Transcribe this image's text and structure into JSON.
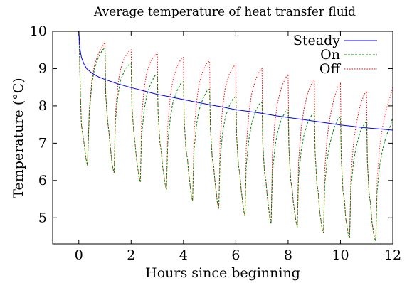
{
  "chart_data": {
    "type": "line",
    "title": "Average temperature of heat transfer fluid",
    "xlabel": "Hours since beginning",
    "ylabel": "Temperature (°C)",
    "xlim": [
      -1,
      12
    ],
    "ylim": [
      4.3,
      10
    ],
    "xticks": [
      0,
      2,
      4,
      6,
      8,
      10,
      12
    ],
    "yticks": [
      5,
      6,
      7,
      8,
      9,
      10
    ],
    "legend_position": "top-right",
    "grid": false,
    "series": [
      {
        "name": "Steady",
        "color": "#0000ff",
        "dash": "solid",
        "x": [
          0.0,
          0.02,
          0.05,
          0.1,
          0.2,
          0.3,
          0.5,
          0.75,
          1.0,
          1.5,
          2.0,
          2.5,
          3.0,
          3.5,
          4.0,
          4.5,
          5.0,
          5.5,
          6.0,
          6.5,
          7.0,
          7.5,
          8.0,
          8.5,
          9.0,
          9.5,
          10.0,
          10.5,
          11.0,
          11.5,
          12.0
        ],
        "y": [
          10.0,
          9.8,
          9.5,
          9.3,
          9.12,
          9.0,
          8.88,
          8.78,
          8.71,
          8.59,
          8.49,
          8.4,
          8.31,
          8.24,
          8.17,
          8.1,
          8.03,
          7.97,
          7.9,
          7.85,
          7.8,
          7.74,
          7.69,
          7.64,
          7.59,
          7.54,
          7.49,
          7.45,
          7.41,
          7.38,
          7.35
        ]
      },
      {
        "name": "On",
        "color": "#008000",
        "dash": "3,2",
        "x": [
          0.0,
          0.02,
          0.06,
          0.1,
          0.14,
          0.2,
          0.27,
          0.33,
          0.4,
          0.5,
          0.6,
          0.75,
          0.9,
          1.0,
          1.03,
          1.1,
          1.15,
          1.22,
          1.28,
          1.35,
          1.4,
          1.5,
          1.6,
          1.75,
          1.9,
          2.0,
          2.03,
          2.1,
          2.15,
          2.2,
          2.3,
          2.35,
          2.4,
          2.5,
          2.6,
          2.75,
          2.9,
          3.0,
          3.03,
          3.1,
          3.15,
          3.2,
          3.3,
          3.35,
          3.4,
          3.5,
          3.6,
          3.75,
          3.9,
          4.0,
          4.03,
          4.1,
          4.15,
          4.2,
          4.3,
          4.35,
          4.4,
          4.5,
          4.6,
          4.75,
          4.9,
          5.0,
          5.03,
          5.1,
          5.15,
          5.2,
          5.3,
          5.35,
          5.4,
          5.5,
          5.6,
          5.75,
          5.9,
          6.0,
          6.03,
          6.1,
          6.15,
          6.2,
          6.3,
          6.35,
          6.4,
          6.5,
          6.6,
          6.75,
          6.9,
          7.0,
          7.03,
          7.1,
          7.15,
          7.2,
          7.3,
          7.35,
          7.4,
          7.5,
          7.6,
          7.75,
          7.9,
          8.0,
          8.03,
          8.1,
          8.15,
          8.2,
          8.3,
          8.35,
          8.4,
          8.5,
          8.6,
          8.75,
          8.9,
          9.0,
          9.03,
          9.1,
          9.15,
          9.2,
          9.3,
          9.35,
          9.4,
          9.5,
          9.6,
          9.75,
          9.9,
          10.0,
          10.03,
          10.1,
          10.15,
          10.2,
          10.3,
          10.35,
          10.4,
          10.5,
          10.6,
          10.75,
          10.9,
          11.0,
          11.03,
          11.1,
          11.15,
          11.2,
          11.3,
          11.35,
          11.4,
          11.5,
          11.6,
          11.75,
          11.9,
          12.0
        ],
        "y": [
          10.0,
          9.6,
          8.3,
          7.5,
          7.3,
          7.0,
          6.6,
          6.4,
          7.8,
          8.6,
          9.0,
          9.3,
          9.5,
          9.55,
          8.3,
          7.6,
          7.3,
          6.8,
          6.4,
          6.2,
          7.6,
          8.3,
          8.7,
          8.95,
          9.1,
          9.15,
          8.0,
          7.3,
          7.0,
          6.6,
          6.1,
          5.95,
          7.2,
          7.9,
          8.3,
          8.6,
          8.8,
          8.85,
          7.8,
          7.0,
          6.8,
          6.4,
          5.9,
          5.75,
          7.0,
          7.7,
          8.1,
          8.4,
          8.6,
          8.65,
          7.6,
          6.8,
          6.6,
          6.2,
          5.6,
          5.45,
          6.8,
          7.5,
          7.9,
          8.2,
          8.4,
          8.45,
          7.4,
          6.6,
          6.4,
          6.0,
          5.4,
          5.25,
          6.6,
          7.3,
          7.7,
          8.0,
          8.2,
          8.25,
          7.2,
          6.4,
          6.2,
          5.8,
          5.2,
          5.05,
          6.4,
          7.1,
          7.5,
          7.85,
          8.05,
          8.1,
          7.0,
          6.2,
          6.0,
          5.6,
          5.0,
          4.85,
          6.2,
          6.9,
          7.3,
          7.65,
          7.85,
          7.9,
          6.9,
          6.0,
          5.8,
          5.4,
          4.9,
          4.75,
          6.1,
          6.8,
          7.2,
          7.55,
          7.75,
          7.8,
          6.8,
          5.9,
          5.7,
          5.2,
          4.7,
          4.6,
          5.9,
          6.6,
          7.0,
          7.4,
          7.65,
          7.7,
          6.6,
          5.7,
          5.5,
          5.0,
          4.55,
          4.45,
          5.8,
          6.5,
          6.9,
          7.3,
          7.5,
          7.6,
          6.5,
          5.6,
          5.4,
          4.9,
          4.45,
          4.38,
          5.7,
          6.4,
          6.8,
          7.2,
          7.45,
          7.7
        ]
      },
      {
        "name": "Off",
        "color": "#ff0000",
        "dash": "1.5,2",
        "x": [
          0.0,
          0.02,
          0.06,
          0.1,
          0.14,
          0.2,
          0.27,
          0.33,
          0.4,
          0.5,
          0.6,
          0.75,
          0.9,
          1.0,
          1.03,
          1.1,
          1.15,
          1.22,
          1.28,
          1.35,
          1.4,
          1.5,
          1.6,
          1.75,
          1.9,
          2.0,
          2.03,
          2.1,
          2.15,
          2.2,
          2.3,
          2.35,
          2.4,
          2.5,
          2.6,
          2.75,
          2.9,
          3.0,
          3.03,
          3.1,
          3.15,
          3.2,
          3.3,
          3.35,
          3.4,
          3.5,
          3.6,
          3.75,
          3.9,
          4.0,
          4.03,
          4.1,
          4.15,
          4.2,
          4.3,
          4.35,
          4.4,
          4.5,
          4.6,
          4.75,
          4.9,
          5.0,
          5.03,
          5.1,
          5.15,
          5.2,
          5.3,
          5.35,
          5.4,
          5.5,
          5.6,
          5.75,
          5.9,
          6.0,
          6.03,
          6.1,
          6.15,
          6.2,
          6.3,
          6.35,
          6.4,
          6.5,
          6.6,
          6.75,
          6.9,
          7.0,
          7.03,
          7.1,
          7.15,
          7.2,
          7.3,
          7.35,
          7.4,
          7.5,
          7.6,
          7.75,
          7.9,
          8.0,
          8.03,
          8.1,
          8.15,
          8.2,
          8.3,
          8.35,
          8.4,
          8.5,
          8.6,
          8.75,
          8.9,
          9.0,
          9.03,
          9.1,
          9.15,
          9.2,
          9.3,
          9.35,
          9.4,
          9.5,
          9.6,
          9.75,
          9.9,
          10.0,
          10.03,
          10.1,
          10.15,
          10.2,
          10.3,
          10.35,
          10.4,
          10.5,
          10.6,
          10.75,
          10.9,
          11.0,
          11.03,
          11.1,
          11.15,
          11.2,
          11.3,
          11.35,
          11.4,
          11.5,
          11.6,
          11.75,
          11.9,
          12.0
        ],
        "y": [
          10.0,
          9.6,
          8.3,
          7.5,
          7.3,
          7.0,
          6.6,
          6.4,
          7.9,
          8.7,
          9.1,
          9.4,
          9.6,
          9.7,
          8.3,
          7.6,
          7.3,
          6.8,
          6.4,
          6.2,
          7.8,
          8.6,
          9.0,
          9.3,
          9.45,
          9.5,
          8.0,
          7.3,
          7.0,
          6.6,
          6.1,
          5.95,
          7.7,
          8.5,
          8.9,
          9.2,
          9.35,
          9.4,
          7.8,
          7.0,
          6.8,
          6.4,
          5.9,
          5.75,
          7.5,
          8.3,
          8.7,
          9.05,
          9.25,
          9.3,
          7.6,
          6.8,
          6.6,
          6.2,
          5.6,
          5.45,
          7.3,
          8.1,
          8.6,
          8.95,
          9.15,
          9.2,
          7.4,
          6.6,
          6.4,
          6.0,
          5.4,
          5.25,
          7.1,
          8.0,
          8.5,
          8.85,
          9.05,
          9.1,
          7.2,
          6.4,
          6.2,
          5.8,
          5.2,
          5.05,
          6.9,
          7.8,
          8.3,
          8.7,
          8.92,
          9.0,
          7.0,
          6.2,
          6.0,
          5.6,
          5.0,
          4.85,
          6.7,
          7.6,
          8.1,
          8.5,
          8.75,
          8.85,
          6.9,
          6.0,
          5.8,
          5.4,
          4.9,
          4.75,
          6.5,
          7.4,
          7.9,
          8.35,
          8.6,
          8.7,
          6.8,
          5.9,
          5.7,
          5.2,
          4.7,
          4.6,
          6.3,
          7.2,
          7.7,
          8.2,
          8.5,
          8.6,
          6.6,
          5.7,
          5.5,
          5.0,
          4.55,
          4.45,
          6.1,
          7.0,
          7.5,
          8.0,
          8.3,
          8.4,
          6.5,
          5.6,
          5.4,
          4.9,
          4.45,
          4.38,
          6.0,
          6.9,
          7.4,
          7.9,
          8.25,
          8.5
        ]
      }
    ]
  }
}
